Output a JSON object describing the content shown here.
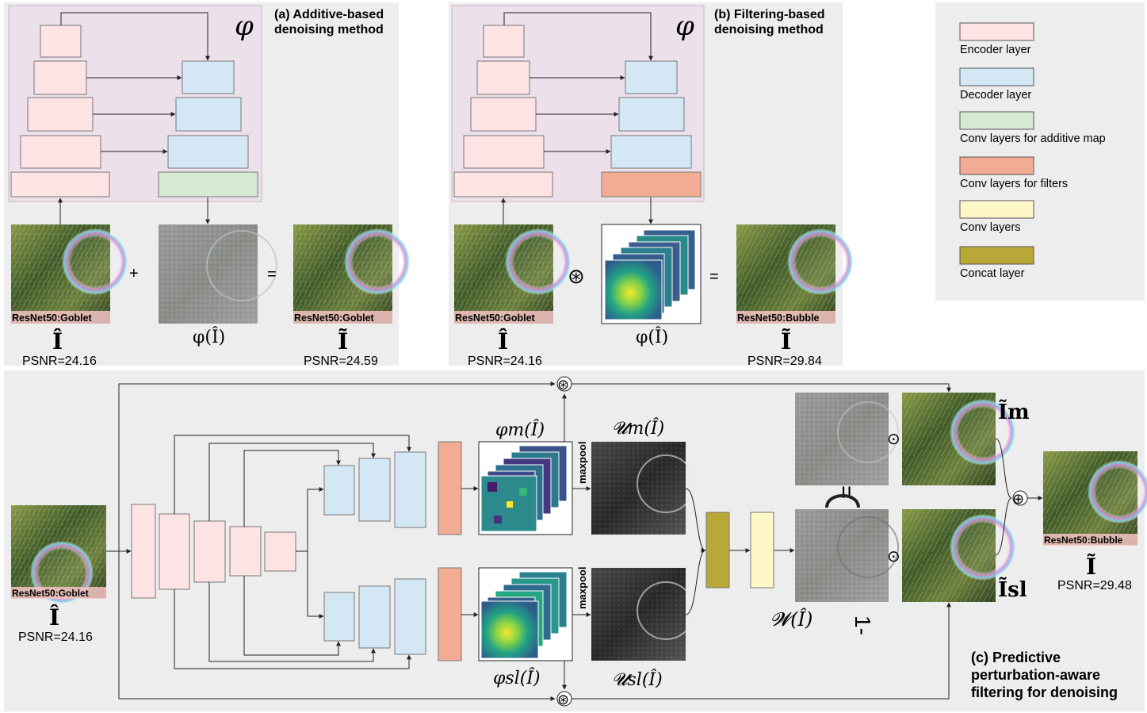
{
  "colors": {
    "panel_bg": "#ededed",
    "phi_bg": "#ece0ea",
    "encoder": "#fde3e3",
    "decoder": "#d3e8f4",
    "additive": "#d4ead2",
    "filters": "#f3ac94",
    "conv": "#fef8c8",
    "concat": "#b9a838",
    "label_bg": "#f4c3c3"
  },
  "panel_a": {
    "title_line1": "(a) Additive-based",
    "title_line2": "denoising method",
    "phi_symbol": "φ",
    "input_label": "ResNet50:Goblet",
    "input_symbol": "Î",
    "input_psnr": "PSNR=24.16",
    "plus": "+",
    "equals": "=",
    "map_label": "φ(Î)",
    "output_label": "ResNet50:Goblet",
    "output_symbol": "Ĩ",
    "output_psnr": "PSNR=24.59"
  },
  "panel_b": {
    "title_line1": "(b) Filtering-based",
    "title_line2": "denoising method",
    "phi_symbol": "φ",
    "input_label": "ResNet50:Goblet",
    "input_symbol": "Î",
    "input_psnr": "PSNR=24.16",
    "conv_op": "⊛",
    "equals": "=",
    "map_label": "φ(Î)",
    "output_label": "ResNet50:Bubble",
    "output_symbol": "Ĩ",
    "output_psnr": "PSNR=29.84"
  },
  "legend": {
    "items": [
      {
        "label": "Encoder layer",
        "color_key": "encoder"
      },
      {
        "label": "Decoder layer",
        "color_key": "decoder"
      },
      {
        "label": "Conv layers for additive map",
        "color_key": "additive"
      },
      {
        "label": "Conv layers for filters",
        "color_key": "filters"
      },
      {
        "label": "Conv layers",
        "color_key": "conv"
      },
      {
        "label": "Concat layer",
        "color_key": "concat"
      }
    ]
  },
  "panel_c": {
    "title_line1": "(c) Predictive",
    "title_line2": "perturbation-aware",
    "title_line3": "filtering for denoising",
    "input_label": "ResNet50:Goblet",
    "input_symbol": "Î",
    "input_psnr": "PSNR=24.16",
    "phi_m": "φm(Î)",
    "phi_sl": "φsl(Î)",
    "maxpool_top": "maxpool",
    "maxpool_bottom": "maxpool",
    "u_m": "𝓤m(Î)",
    "u_sl": "𝓤sl(Î)",
    "w_label": "𝓦(Î)",
    "one_minus": "1-",
    "equals_sign": "=",
    "i_m": "Ĩm",
    "i_sl": "Ĩsl",
    "dot_op": "⊙",
    "conv_op": "⊛",
    "sum_op": "⊕",
    "output_label": "ResNet50:Bubble",
    "output_symbol": "Ĩ",
    "output_psnr": "PSNR=29.48"
  }
}
